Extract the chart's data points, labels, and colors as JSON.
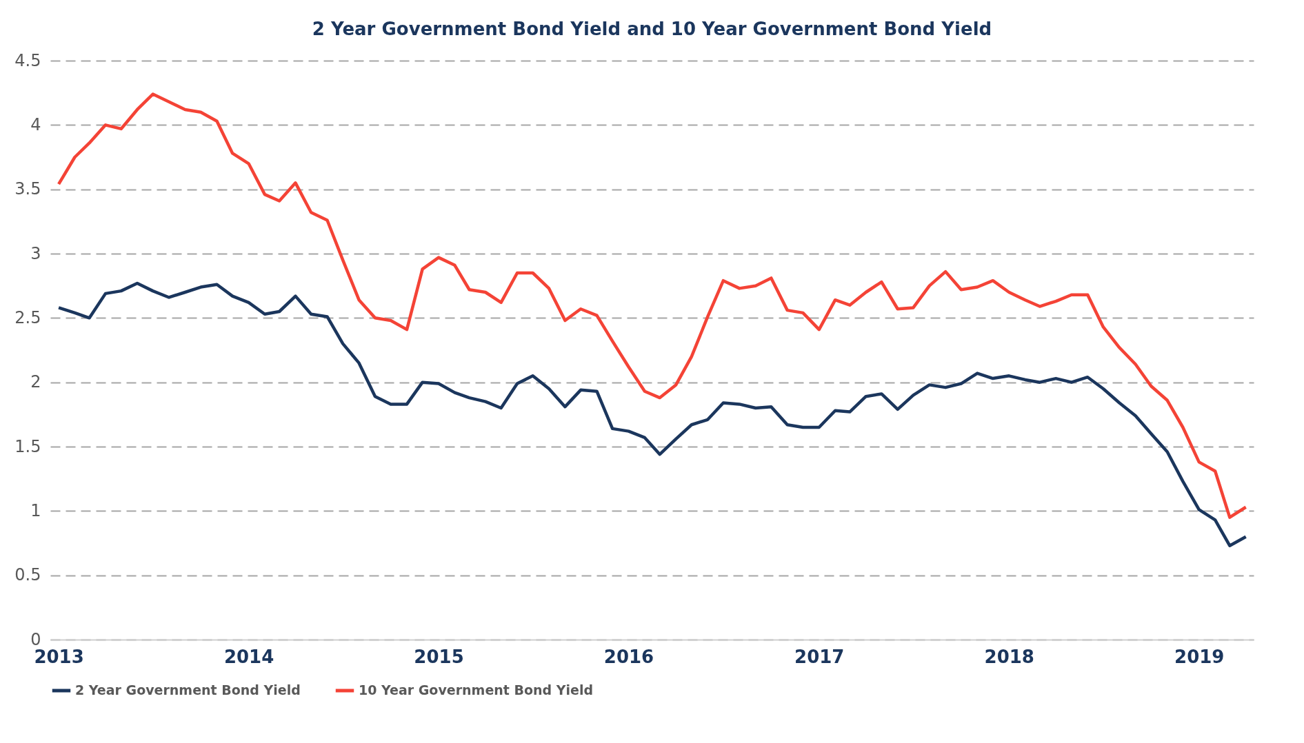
{
  "chart_data": {
    "type": "line",
    "title": "2 Year Government Bond Yield and 10 Year Government Bond Yield",
    "x": [
      "2013-01",
      "2013-02",
      "2013-03",
      "2013-04",
      "2013-05",
      "2013-06",
      "2013-07",
      "2013-08",
      "2013-09",
      "2013-10",
      "2013-11",
      "2013-12",
      "2014-01",
      "2014-02",
      "2014-03",
      "2014-04",
      "2014-05",
      "2014-06",
      "2014-07",
      "2014-08",
      "2014-09",
      "2014-10",
      "2014-11",
      "2014-12",
      "2015-01",
      "2015-02",
      "2015-03",
      "2015-04",
      "2015-05",
      "2015-06",
      "2015-07",
      "2015-08",
      "2015-09",
      "2015-10",
      "2015-11",
      "2015-12",
      "2016-01",
      "2016-02",
      "2016-03",
      "2016-04",
      "2016-05",
      "2016-06",
      "2016-07",
      "2016-08",
      "2016-09",
      "2016-10",
      "2016-11",
      "2016-12",
      "2017-01",
      "2017-02",
      "2017-03",
      "2017-04",
      "2017-05",
      "2017-06",
      "2017-07",
      "2017-08",
      "2017-09",
      "2017-10",
      "2017-11",
      "2017-12",
      "2018-01",
      "2018-02",
      "2018-03",
      "2018-04",
      "2018-05",
      "2018-06",
      "2018-07",
      "2018-08",
      "2018-09",
      "2018-10",
      "2018-11",
      "2018-12",
      "2019-01",
      "2019-02",
      "2019-03",
      "2019-04"
    ],
    "series": [
      {
        "name": "2 Year Government Bond Yield",
        "color": "#1b365d",
        "values": [
          2.58,
          2.54,
          2.5,
          2.69,
          2.71,
          2.77,
          2.71,
          2.66,
          2.7,
          2.74,
          2.76,
          2.67,
          2.62,
          2.53,
          2.55,
          2.67,
          2.53,
          2.51,
          2.3,
          2.15,
          1.89,
          1.83,
          1.83,
          2.0,
          1.99,
          1.92,
          1.88,
          1.85,
          1.8,
          1.99,
          2.05,
          1.95,
          1.81,
          1.94,
          1.93,
          1.64,
          1.62,
          1.57,
          1.44,
          1.56,
          1.67,
          1.71,
          1.84,
          1.83,
          1.8,
          1.81,
          1.67,
          1.65,
          1.65,
          1.78,
          1.77,
          1.89,
          1.91,
          1.79,
          1.9,
          1.98,
          1.96,
          1.99,
          2.07,
          2.03,
          2.05,
          2.02,
          2.0,
          2.03,
          2.0,
          2.04,
          1.95,
          1.84,
          1.74,
          1.6,
          1.46,
          1.23,
          1.01,
          0.93,
          0.73,
          0.8
        ]
      },
      {
        "name": "10 Year Government Bond Yield",
        "color": "#f44336",
        "values": [
          3.54,
          3.75,
          3.86,
          4.0,
          3.97,
          4.12,
          4.24,
          4.18,
          4.12,
          4.1,
          4.03,
          3.78,
          3.7,
          3.46,
          3.41,
          3.55,
          3.32,
          3.26,
          2.95,
          2.64,
          2.5,
          2.48,
          2.41,
          2.88,
          2.97,
          2.91,
          2.72,
          2.7,
          2.62,
          2.85,
          2.85,
          2.73,
          2.48,
          2.57,
          2.52,
          2.32,
          2.12,
          1.93,
          1.88,
          1.98,
          2.2,
          2.51,
          2.79,
          2.73,
          2.75,
          2.81,
          2.56,
          2.54,
          2.41,
          2.64,
          2.6,
          2.7,
          2.78,
          2.57,
          2.58,
          2.75,
          2.86,
          2.72,
          2.74,
          2.79,
          2.7,
          2.64,
          2.59,
          2.63,
          2.68,
          2.68,
          2.43,
          2.27,
          2.14,
          1.97,
          1.86,
          1.65,
          1.38,
          1.31,
          0.95,
          1.03
        ]
      }
    ],
    "xlim": [
      "2012-12-16",
      "2019-04-16"
    ],
    "xticks": [
      {
        "value": "2013-01",
        "label": "2013"
      },
      {
        "value": "2014-01",
        "label": "2014"
      },
      {
        "value": "2015-01",
        "label": "2015"
      },
      {
        "value": "2016-01",
        "label": "2016"
      },
      {
        "value": "2017-01",
        "label": "2017"
      },
      {
        "value": "2018-01",
        "label": "2018"
      },
      {
        "value": "2019-01",
        "label": "2019"
      }
    ],
    "ylim": [
      0,
      4.5
    ],
    "yticks": [
      0,
      0.5,
      1,
      1.5,
      2,
      2.5,
      3,
      3.5,
      4,
      4.5
    ],
    "grid": "y",
    "legend": "bottom",
    "marker": "none",
    "line_style": "solid"
  }
}
